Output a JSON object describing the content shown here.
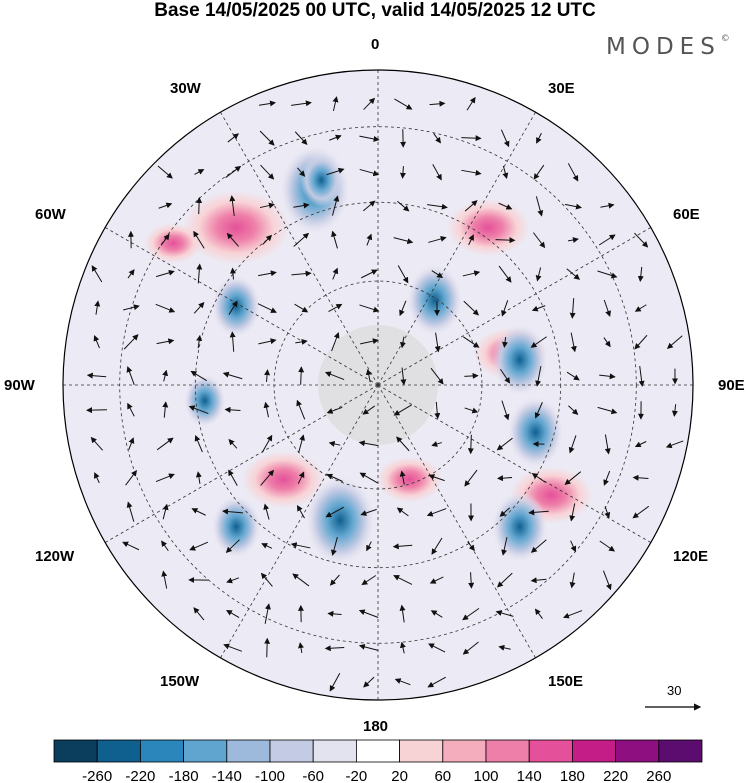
{
  "title": "Base 14/05/2025 00 UTC, valid 14/05/2025 12 UTC",
  "brand": {
    "text": "MODES",
    "mark": "©"
  },
  "longitude_labels": {
    "0": "0",
    "30E": "30E",
    "60E": "60E",
    "90E": "90E",
    "120E": "120E",
    "150E": "150E",
    "180": "180",
    "150W": "150W",
    "120W": "120W",
    "90W": "90W",
    "60W": "60W",
    "30W": "30W"
  },
  "vector_reference": {
    "label": "30",
    "icon": "arrow-right-icon"
  },
  "colorbar": {
    "ticks": [
      "-260",
      "-220",
      "-180",
      "-140",
      "-100",
      "-60",
      "-20",
      "20",
      "60",
      "100",
      "140",
      "180",
      "220",
      "260"
    ],
    "colors": [
      "#0b3d5c",
      "#0f5f8f",
      "#2a86bb",
      "#5fa5cf",
      "#9db9dc",
      "#c4cbe4",
      "#e3e3f0",
      "#ffffff",
      "#f8d3d6",
      "#f3adbd",
      "#ee7fa8",
      "#e4519a",
      "#c41d87",
      "#8e0f7f",
      "#5b0c6e"
    ]
  },
  "features": {
    "blue_centers": [
      [
        -0.2,
        0.62,
        0.1
      ],
      [
        0.18,
        0.27,
        0.08
      ],
      [
        0.45,
        0.08,
        0.08
      ],
      [
        0.5,
        -0.15,
        0.08
      ],
      [
        -0.12,
        -0.43,
        0.1
      ],
      [
        0.45,
        -0.45,
        0.08
      ],
      [
        -0.45,
        0.25,
        0.07
      ],
      [
        -0.55,
        -0.05,
        0.06
      ],
      [
        -0.45,
        -0.45,
        0.07
      ],
      [
        -0.18,
        0.65,
        0.06
      ]
    ],
    "pink_centers": [
      [
        -0.45,
        0.5,
        0.13
      ],
      [
        0.35,
        0.5,
        0.1
      ],
      [
        0.42,
        0.1,
        0.09
      ],
      [
        -0.3,
        -0.3,
        0.1
      ],
      [
        0.1,
        -0.3,
        0.08
      ],
      [
        0.55,
        -0.35,
        0.1
      ],
      [
        -0.65,
        0.45,
        0.07
      ]
    ]
  }
}
